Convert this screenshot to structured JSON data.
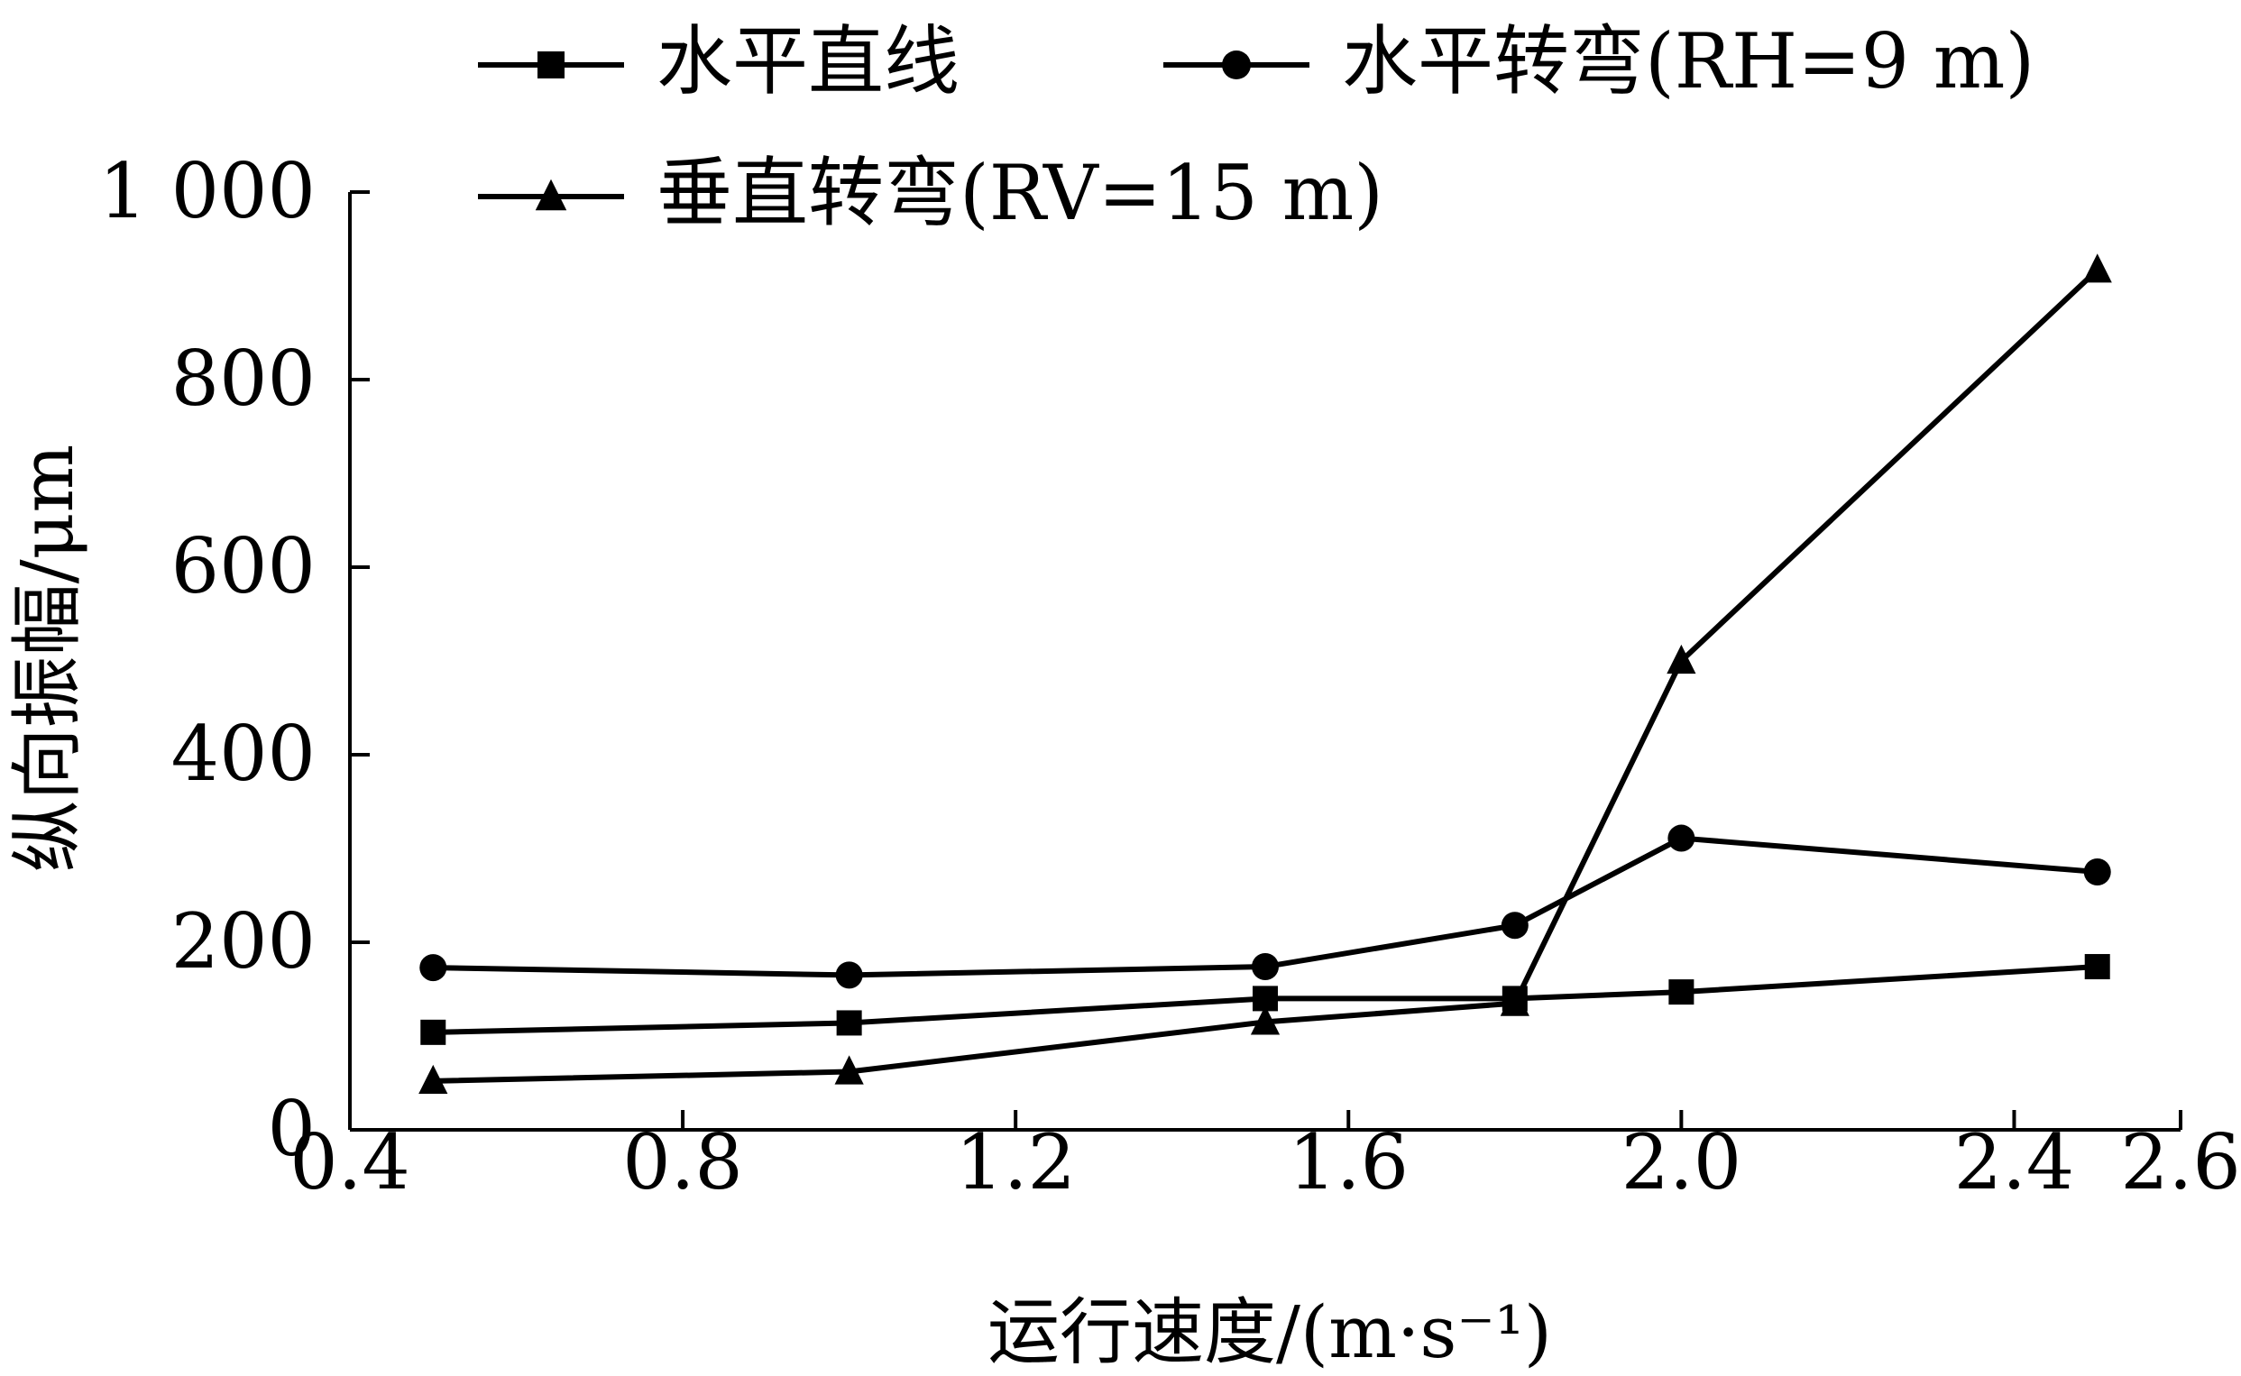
{
  "chart_data": {
    "type": "line",
    "title": "",
    "xlabel": "运行速度/(m·s⁻¹)",
    "ylabel": "纵向振幅/μm",
    "xlim": [
      0.4,
      2.6
    ],
    "ylim": [
      0,
      1000
    ],
    "xticks": [
      "0.4",
      "0.8",
      "1.2",
      "1.6",
      "2.0",
      "2.4",
      "2.6"
    ],
    "xtick_values": [
      0.4,
      0.8,
      1.2,
      1.6,
      2.0,
      2.4,
      2.6
    ],
    "yticks": [
      "0",
      "200",
      "400",
      "600",
      "800",
      "1 000"
    ],
    "ytick_values": [
      0,
      200,
      400,
      600,
      800,
      1000
    ],
    "legend_position": "top",
    "series": [
      {
        "name": "水平直线",
        "marker": "square",
        "color": "#000000",
        "x": [
          0.5,
          1.0,
          1.5,
          1.8,
          2.0,
          2.5
        ],
        "values": [
          104,
          114,
          140,
          140,
          147,
          174
        ]
      },
      {
        "name": "水平转弯(RH=9 m)",
        "marker": "circle",
        "color": "#000000",
        "x": [
          0.5,
          1.0,
          1.5,
          1.8,
          2.0,
          2.5
        ],
        "values": [
          173,
          165,
          174,
          218,
          311,
          275
        ]
      },
      {
        "name": "垂直转弯(RV=15 m)",
        "marker": "triangle",
        "color": "#000000",
        "x": [
          0.5,
          1.0,
          1.5,
          1.8,
          2.0,
          2.5
        ],
        "values": [
          52,
          62,
          115,
          135,
          500,
          917
        ]
      }
    ]
  }
}
